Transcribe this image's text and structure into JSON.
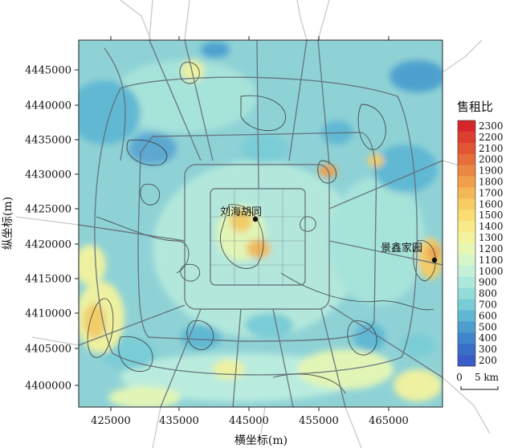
{
  "map": {
    "x_axis": {
      "title": "横坐标(m)",
      "ticks": [
        "425000",
        "435000",
        "445000",
        "455000",
        "465000"
      ]
    },
    "y_axis": {
      "title": "纵坐标(m)",
      "ticks": [
        "4445000",
        "4440000",
        "4435000",
        "4430000",
        "4425000",
        "4420000",
        "4415000",
        "4410000",
        "4405000",
        "4400000"
      ]
    },
    "places": [
      {
        "name": "刘海胡同"
      },
      {
        "name": "景鑫家园"
      }
    ],
    "legend": {
      "title": "售租比",
      "bins": [
        {
          "label": "2300",
          "color": "#d7262b"
        },
        {
          "label": "2200",
          "color": "#dc3e2f"
        },
        {
          "label": "2100",
          "color": "#e15633"
        },
        {
          "label": "2000",
          "color": "#e66e3a"
        },
        {
          "label": "1900",
          "color": "#eb8742"
        },
        {
          "label": "1800",
          "color": "#f0a04c"
        },
        {
          "label": "1700",
          "color": "#f4b857"
        },
        {
          "label": "1600",
          "color": "#f7cc63"
        },
        {
          "label": "1500",
          "color": "#f9dd73"
        },
        {
          "label": "1400",
          "color": "#f8ea88"
        },
        {
          "label": "1300",
          "color": "#f3f39e"
        },
        {
          "label": "1200",
          "color": "#e6f7b5"
        },
        {
          "label": "1100",
          "color": "#d6f5c8"
        },
        {
          "label": "1000",
          "color": "#c4f0d8"
        },
        {
          "label": "900",
          "color": "#ade8da"
        },
        {
          "label": "800",
          "color": "#93dcd9"
        },
        {
          "label": "700",
          "color": "#79ccd6"
        },
        {
          "label": "600",
          "color": "#5fb7d3"
        },
        {
          "label": "500",
          "color": "#4c9ecf"
        },
        {
          "label": "400",
          "color": "#3f86cb"
        },
        {
          "label": "300",
          "color": "#3a6fc7"
        },
        {
          "label": "200",
          "color": "#3a5cc6"
        }
      ]
    },
    "scale_bar": {
      "start": "0",
      "end": "5 km"
    }
  }
}
